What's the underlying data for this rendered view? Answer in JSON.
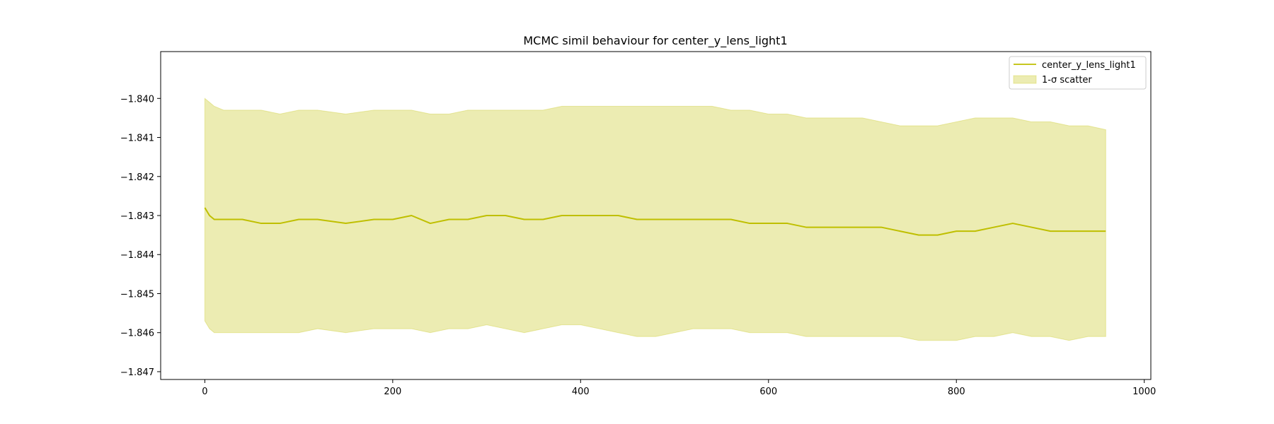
{
  "chart_data": {
    "type": "line",
    "title": "MCMC simil behaviour for center_y_lens_light1",
    "xlabel": "",
    "ylabel": "",
    "xlim": [
      -47,
      1007
    ],
    "ylim": [
      -1.8472,
      -1.8388
    ],
    "x_ticks": [
      0,
      200,
      400,
      600,
      800,
      1000
    ],
    "x_tick_labels": [
      "0",
      "200",
      "400",
      "600",
      "800",
      "1000"
    ],
    "y_ticks": [
      -1.84,
      -1.841,
      -1.842,
      -1.843,
      -1.844,
      -1.845,
      -1.846,
      -1.847
    ],
    "y_tick_labels": [
      "−1.840",
      "−1.841",
      "−1.842",
      "−1.843",
      "−1.844",
      "−1.845",
      "−1.846",
      "−1.847"
    ],
    "grid": false,
    "legend_position": "top-right",
    "colors": {
      "line": "#bfbf00",
      "band": "#bfbf00",
      "band_opacity": 0.3
    },
    "series": [
      {
        "name": "center_y_lens_light1",
        "kind": "line",
        "x": [
          0,
          5,
          10,
          20,
          40,
          60,
          80,
          100,
          120,
          150,
          180,
          200,
          220,
          240,
          260,
          280,
          300,
          320,
          340,
          360,
          380,
          400,
          420,
          440,
          460,
          480,
          500,
          520,
          540,
          560,
          580,
          600,
          620,
          640,
          660,
          680,
          700,
          720,
          740,
          760,
          780,
          800,
          820,
          840,
          860,
          880,
          900,
          920,
          940,
          959
        ],
        "y": [
          -1.8428,
          -1.843,
          -1.8431,
          -1.8431,
          -1.8431,
          -1.8432,
          -1.8432,
          -1.8431,
          -1.8431,
          -1.8432,
          -1.8431,
          -1.8431,
          -1.843,
          -1.8432,
          -1.8431,
          -1.8431,
          -1.843,
          -1.843,
          -1.8431,
          -1.8431,
          -1.843,
          -1.843,
          -1.843,
          -1.843,
          -1.8431,
          -1.8431,
          -1.8431,
          -1.8431,
          -1.8431,
          -1.8431,
          -1.8432,
          -1.8432,
          -1.8432,
          -1.8433,
          -1.8433,
          -1.8433,
          -1.8433,
          -1.8433,
          -1.8434,
          -1.8435,
          -1.8435,
          -1.8434,
          -1.8434,
          -1.8433,
          -1.8432,
          -1.8433,
          -1.8434,
          -1.8434,
          -1.8434,
          -1.8434
        ]
      },
      {
        "name": "1-σ scatter",
        "kind": "band",
        "x": [
          0,
          5,
          10,
          20,
          40,
          60,
          80,
          100,
          120,
          150,
          180,
          200,
          220,
          240,
          260,
          280,
          300,
          320,
          340,
          360,
          380,
          400,
          420,
          440,
          460,
          480,
          500,
          520,
          540,
          560,
          580,
          600,
          620,
          640,
          660,
          680,
          700,
          720,
          740,
          760,
          780,
          800,
          820,
          840,
          860,
          880,
          900,
          920,
          940,
          959
        ],
        "lower": [
          -1.8457,
          -1.8459,
          -1.846,
          -1.846,
          -1.846,
          -1.846,
          -1.846,
          -1.846,
          -1.8459,
          -1.846,
          -1.8459,
          -1.8459,
          -1.8459,
          -1.846,
          -1.8459,
          -1.8459,
          -1.8458,
          -1.8459,
          -1.846,
          -1.8459,
          -1.8458,
          -1.8458,
          -1.8459,
          -1.846,
          -1.8461,
          -1.8461,
          -1.846,
          -1.8459,
          -1.8459,
          -1.8459,
          -1.846,
          -1.846,
          -1.846,
          -1.8461,
          -1.8461,
          -1.8461,
          -1.8461,
          -1.8461,
          -1.8461,
          -1.8462,
          -1.8462,
          -1.8462,
          -1.8461,
          -1.8461,
          -1.846,
          -1.8461,
          -1.8461,
          -1.8462,
          -1.8461,
          -1.8461
        ],
        "upper": [
          -1.84,
          -1.8401,
          -1.8402,
          -1.8403,
          -1.8403,
          -1.8403,
          -1.8404,
          -1.8403,
          -1.8403,
          -1.8404,
          -1.8403,
          -1.8403,
          -1.8403,
          -1.8404,
          -1.8404,
          -1.8403,
          -1.8403,
          -1.8403,
          -1.8403,
          -1.8403,
          -1.8402,
          -1.8402,
          -1.8402,
          -1.8402,
          -1.8402,
          -1.8402,
          -1.8402,
          -1.8402,
          -1.8402,
          -1.8403,
          -1.8403,
          -1.8404,
          -1.8404,
          -1.8405,
          -1.8405,
          -1.8405,
          -1.8405,
          -1.8406,
          -1.8407,
          -1.8407,
          -1.8407,
          -1.8406,
          -1.8405,
          -1.8405,
          -1.8405,
          -1.8406,
          -1.8406,
          -1.8407,
          -1.8407,
          -1.8408
        ]
      }
    ]
  }
}
